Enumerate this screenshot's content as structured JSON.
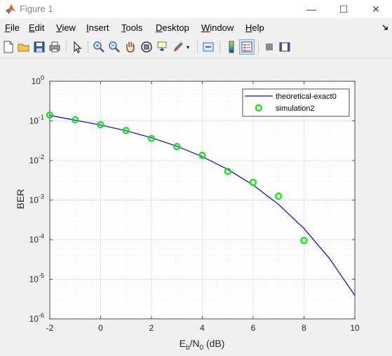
{
  "window": {
    "title": "Figure 1",
    "minimize_glyph": "—",
    "maximize_glyph": "☐",
    "close_glyph": "✕"
  },
  "menu": [
    {
      "label": "File",
      "u": "F",
      "rest": "ile"
    },
    {
      "label": "Edit",
      "u": "E",
      "rest": "dit"
    },
    {
      "label": "View",
      "u": "V",
      "rest": "iew"
    },
    {
      "label": "Insert",
      "u": "I",
      "rest": "nsert"
    },
    {
      "label": "Tools",
      "u": "T",
      "rest": "ools"
    },
    {
      "label": "Desktop",
      "u": "D",
      "rest": "esktop"
    },
    {
      "label": "Window",
      "u": "W",
      "rest": "indow"
    },
    {
      "label": "Help",
      "u": "H",
      "rest": "elp"
    }
  ],
  "toolbar_icons": [
    "new-figure-icon",
    "open-file-icon",
    "save-icon",
    "print-icon",
    "edit-plot-arrow-icon",
    "zoom-in-icon",
    "zoom-out-icon",
    "pan-hand-icon",
    "rotate-3d-icon",
    "data-cursor-icon",
    "brush-icon",
    "link-plot-icon",
    "colorbar-icon",
    "legend-icon",
    "hide-plot-tools-icon",
    "show-plot-tools-icon"
  ],
  "chart_data": {
    "type": "line",
    "xlabel": "E",
    "xlabel_sub": "b",
    "xlabel_mid": "/N",
    "xlabel_sub2": "0",
    "xlabel_tail": " (dB)",
    "ylabel": "BER",
    "xlim": [
      -2,
      10
    ],
    "ylim": [
      1e-06,
      1
    ],
    "yscale": "log",
    "grid": true,
    "legend_position": "top-right",
    "x_ticks": [
      "-2",
      "0",
      "2",
      "4",
      "6",
      "8",
      "10"
    ],
    "y_tick_exponents": [
      "-6",
      "-5",
      "-4",
      "-3",
      "-2",
      "-1",
      "0"
    ],
    "series": [
      {
        "name": "theoretical-exact0",
        "style": "line",
        "color": "#0000ff",
        "x": [
          -2,
          -1,
          0,
          1,
          2,
          3,
          4,
          5,
          6,
          7,
          8,
          9,
          10
        ],
        "y": [
          0.138,
          0.104,
          0.0786,
          0.0563,
          0.0375,
          0.0229,
          0.0125,
          0.00595,
          0.0024,
          0.000772,
          0.000191,
          3.36e-05,
          3.9e-06
        ]
      },
      {
        "name": "simulation2",
        "style": "markers",
        "color": "#00ee00",
        "x": [
          -2,
          -1,
          0,
          1,
          2,
          3,
          4,
          5,
          6,
          7,
          8
        ],
        "y": [
          0.14,
          0.106,
          0.08,
          0.057,
          0.036,
          0.0225,
          0.0135,
          0.0053,
          0.0028,
          0.00125,
          9.5e-05
        ]
      }
    ]
  }
}
